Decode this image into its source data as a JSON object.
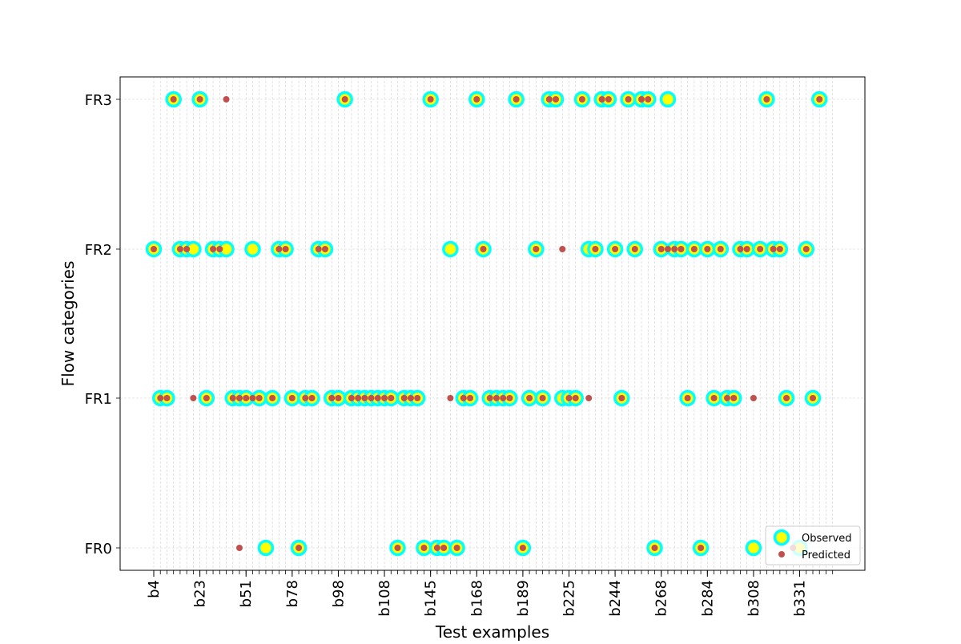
{
  "chart_data": {
    "type": "scatter",
    "title": "",
    "xlabel": "Test examples",
    "ylabel": "Flow categories",
    "y_categories": [
      "FR0",
      "FR1",
      "FR2",
      "FR3"
    ],
    "x_tick_labels": [
      "b4",
      "b23",
      "b51",
      "b78",
      "b98",
      "b108",
      "b145",
      "b168",
      "b189",
      "b225",
      "b244",
      "b268",
      "b284",
      "b308",
      "b331"
    ],
    "x_tick_positions": [
      0,
      7,
      14,
      21,
      28,
      35,
      42,
      49,
      56,
      63,
      70,
      77,
      84,
      91,
      98
    ],
    "x_count": 104,
    "grid": true,
    "legend_position": "lower-right",
    "colors": {
      "observed_fill": "#ffff00",
      "observed_edge": "#00ffff",
      "predicted": "#c0504d"
    },
    "series": [
      {
        "name": "Observed",
        "marker": "large circle",
        "points": [
          [
            0,
            "FR2"
          ],
          [
            1,
            "FR1"
          ],
          [
            2,
            "FR1"
          ],
          [
            3,
            "FR3"
          ],
          [
            4,
            "FR2"
          ],
          [
            5,
            "FR2"
          ],
          [
            6,
            "FR2"
          ],
          [
            8,
            "FR1"
          ],
          [
            7,
            "FR3"
          ],
          [
            9,
            "FR2"
          ],
          [
            10,
            "FR2"
          ],
          [
            11,
            "FR2"
          ],
          [
            12,
            "FR1"
          ],
          [
            13,
            "FR1"
          ],
          [
            14,
            "FR1"
          ],
          [
            15,
            "FR2"
          ],
          [
            16,
            "FR1"
          ],
          [
            17,
            "FR0"
          ],
          [
            18,
            "FR1"
          ],
          [
            19,
            "FR2"
          ],
          [
            20,
            "FR2"
          ],
          [
            21,
            "FR1"
          ],
          [
            22,
            "FR0"
          ],
          [
            23,
            "FR1"
          ],
          [
            24,
            "FR1"
          ],
          [
            25,
            "FR2"
          ],
          [
            26,
            "FR2"
          ],
          [
            27,
            "FR1"
          ],
          [
            28,
            "FR1"
          ],
          [
            29,
            "FR3"
          ],
          [
            30,
            "FR1"
          ],
          [
            31,
            "FR1"
          ],
          [
            32,
            "FR1"
          ],
          [
            33,
            "FR1"
          ],
          [
            34,
            "FR1"
          ],
          [
            35,
            "FR1"
          ],
          [
            36,
            "FR1"
          ],
          [
            37,
            "FR0"
          ],
          [
            38,
            "FR1"
          ],
          [
            39,
            "FR1"
          ],
          [
            40,
            "FR1"
          ],
          [
            41,
            "FR0"
          ],
          [
            42,
            "FR3"
          ],
          [
            43,
            "FR0"
          ],
          [
            44,
            "FR0"
          ],
          [
            45,
            "FR2"
          ],
          [
            46,
            "FR0"
          ],
          [
            47,
            "FR1"
          ],
          [
            48,
            "FR1"
          ],
          [
            49,
            "FR3"
          ],
          [
            50,
            "FR2"
          ],
          [
            51,
            "FR1"
          ],
          [
            52,
            "FR1"
          ],
          [
            53,
            "FR1"
          ],
          [
            54,
            "FR1"
          ],
          [
            55,
            "FR3"
          ],
          [
            56,
            "FR0"
          ],
          [
            57,
            "FR1"
          ],
          [
            58,
            "FR2"
          ],
          [
            59,
            "FR1"
          ],
          [
            60,
            "FR3"
          ],
          [
            61,
            "FR3"
          ],
          [
            62,
            "FR1"
          ],
          [
            63,
            "FR1"
          ],
          [
            64,
            "FR1"
          ],
          [
            65,
            "FR3"
          ],
          [
            66,
            "FR2"
          ],
          [
            67,
            "FR2"
          ],
          [
            68,
            "FR3"
          ],
          [
            69,
            "FR3"
          ],
          [
            70,
            "FR2"
          ],
          [
            71,
            "FR1"
          ],
          [
            72,
            "FR3"
          ],
          [
            73,
            "FR2"
          ],
          [
            74,
            "FR3"
          ],
          [
            75,
            "FR3"
          ],
          [
            76,
            "FR0"
          ],
          [
            77,
            "FR2"
          ],
          [
            78,
            "FR3"
          ],
          [
            79,
            "FR2"
          ],
          [
            80,
            "FR2"
          ],
          [
            81,
            "FR1"
          ],
          [
            82,
            "FR2"
          ],
          [
            83,
            "FR0"
          ],
          [
            84,
            "FR2"
          ],
          [
            85,
            "FR1"
          ],
          [
            86,
            "FR2"
          ],
          [
            87,
            "FR1"
          ],
          [
            88,
            "FR1"
          ],
          [
            89,
            "FR2"
          ],
          [
            90,
            "FR2"
          ],
          [
            91,
            "FR0"
          ],
          [
            92,
            "FR2"
          ],
          [
            93,
            "FR3"
          ],
          [
            94,
            "FR2"
          ],
          [
            95,
            "FR2"
          ],
          [
            96,
            "FR1"
          ],
          [
            98,
            "FR0"
          ],
          [
            99,
            "FR2"
          ],
          [
            100,
            "FR1"
          ],
          [
            101,
            "FR3"
          ]
        ]
      },
      {
        "name": "Predicted",
        "marker": "small dot",
        "points": [
          [
            0,
            "FR2"
          ],
          [
            1,
            "FR1"
          ],
          [
            2,
            "FR1"
          ],
          [
            3,
            "FR3"
          ],
          [
            4,
            "FR2"
          ],
          [
            5,
            "FR2"
          ],
          [
            6,
            "FR1"
          ],
          [
            8,
            "FR1"
          ],
          [
            7,
            "FR3"
          ],
          [
            9,
            "FR2"
          ],
          [
            10,
            "FR2"
          ],
          [
            11,
            "FR3"
          ],
          [
            12,
            "FR1"
          ],
          [
            13,
            "FR1"
          ],
          [
            14,
            "FR1"
          ],
          [
            15,
            "FR1"
          ],
          [
            16,
            "FR1"
          ],
          [
            13,
            "FR0"
          ],
          [
            18,
            "FR1"
          ],
          [
            19,
            "FR2"
          ],
          [
            20,
            "FR2"
          ],
          [
            21,
            "FR1"
          ],
          [
            22,
            "FR0"
          ],
          [
            23,
            "FR1"
          ],
          [
            24,
            "FR1"
          ],
          [
            25,
            "FR2"
          ],
          [
            26,
            "FR2"
          ],
          [
            27,
            "FR1"
          ],
          [
            28,
            "FR1"
          ],
          [
            29,
            "FR3"
          ],
          [
            30,
            "FR1"
          ],
          [
            31,
            "FR1"
          ],
          [
            32,
            "FR1"
          ],
          [
            33,
            "FR1"
          ],
          [
            34,
            "FR1"
          ],
          [
            35,
            "FR1"
          ],
          [
            36,
            "FR1"
          ],
          [
            37,
            "FR0"
          ],
          [
            38,
            "FR1"
          ],
          [
            39,
            "FR1"
          ],
          [
            40,
            "FR1"
          ],
          [
            41,
            "FR0"
          ],
          [
            42,
            "FR3"
          ],
          [
            43,
            "FR0"
          ],
          [
            44,
            "FR0"
          ],
          [
            45,
            "FR1"
          ],
          [
            46,
            "FR0"
          ],
          [
            47,
            "FR1"
          ],
          [
            48,
            "FR1"
          ],
          [
            49,
            "FR3"
          ],
          [
            50,
            "FR2"
          ],
          [
            51,
            "FR1"
          ],
          [
            52,
            "FR1"
          ],
          [
            53,
            "FR1"
          ],
          [
            54,
            "FR1"
          ],
          [
            55,
            "FR3"
          ],
          [
            56,
            "FR0"
          ],
          [
            57,
            "FR1"
          ],
          [
            58,
            "FR2"
          ],
          [
            59,
            "FR1"
          ],
          [
            60,
            "FR3"
          ],
          [
            61,
            "FR3"
          ],
          [
            62,
            "FR2"
          ],
          [
            63,
            "FR1"
          ],
          [
            64,
            "FR1"
          ],
          [
            65,
            "FR3"
          ],
          [
            66,
            "FR1"
          ],
          [
            67,
            "FR2"
          ],
          [
            68,
            "FR3"
          ],
          [
            69,
            "FR3"
          ],
          [
            70,
            "FR2"
          ],
          [
            71,
            "FR1"
          ],
          [
            72,
            "FR3"
          ],
          [
            73,
            "FR2"
          ],
          [
            74,
            "FR3"
          ],
          [
            75,
            "FR3"
          ],
          [
            76,
            "FR0"
          ],
          [
            77,
            "FR2"
          ],
          [
            78,
            "FR2"
          ],
          [
            79,
            "FR2"
          ],
          [
            80,
            "FR2"
          ],
          [
            81,
            "FR1"
          ],
          [
            82,
            "FR2"
          ],
          [
            83,
            "FR0"
          ],
          [
            84,
            "FR2"
          ],
          [
            85,
            "FR1"
          ],
          [
            86,
            "FR2"
          ],
          [
            87,
            "FR1"
          ],
          [
            88,
            "FR1"
          ],
          [
            89,
            "FR2"
          ],
          [
            90,
            "FR2"
          ],
          [
            91,
            "FR1"
          ],
          [
            92,
            "FR2"
          ],
          [
            93,
            "FR3"
          ],
          [
            94,
            "FR2"
          ],
          [
            95,
            "FR2"
          ],
          [
            96,
            "FR1"
          ],
          [
            97,
            "FR0"
          ],
          [
            99,
            "FR2"
          ],
          [
            100,
            "FR1"
          ],
          [
            101,
            "FR3"
          ]
        ]
      }
    ]
  }
}
